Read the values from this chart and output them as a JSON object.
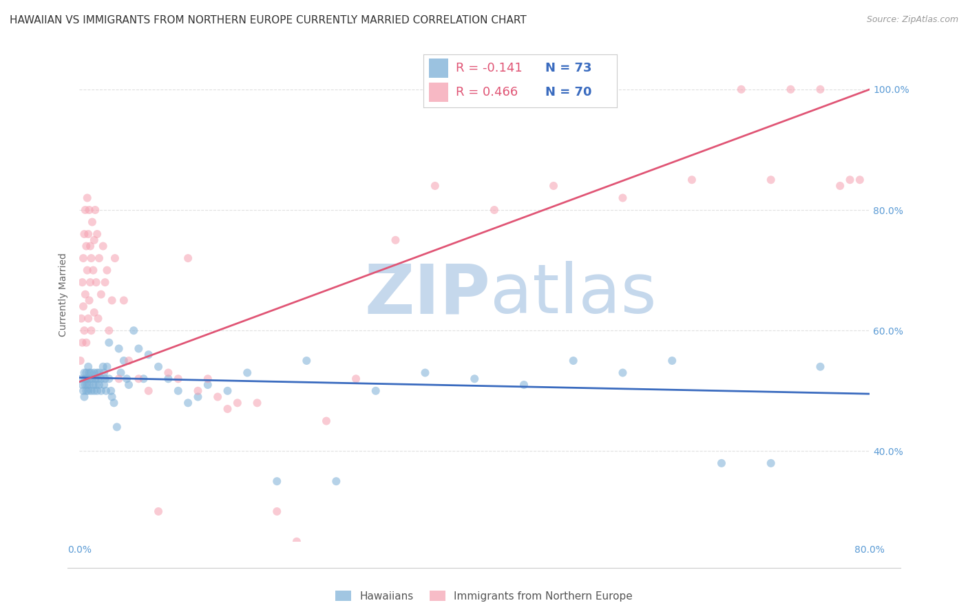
{
  "title": "HAWAIIAN VS IMMIGRANTS FROM NORTHERN EUROPE CURRENTLY MARRIED CORRELATION CHART",
  "source": "Source: ZipAtlas.com",
  "ylabel": "Currently Married",
  "xlim": [
    0.0,
    0.8
  ],
  "ylim": [
    0.25,
    1.07
  ],
  "xtick_positions": [
    0.0,
    0.2,
    0.4,
    0.6,
    0.8
  ],
  "xtick_labels": [
    "0.0%",
    "",
    "",
    "",
    "80.0%"
  ],
  "ytick_values": [
    0.4,
    0.6,
    0.8,
    1.0
  ],
  "ytick_labels": [
    "40.0%",
    "60.0%",
    "80.0%",
    "100.0%"
  ],
  "background_color": "#ffffff",
  "watermark_zip": "ZIP",
  "watermark_atlas": "atlas",
  "watermark_color": "#c5d8ec",
  "blue_color": "#7aaed6",
  "pink_color": "#f5a0b0",
  "blue_line_color": "#3a6bbf",
  "pink_line_color": "#e05575",
  "legend_r_blue": "R = -0.141",
  "legend_n_blue": "N = 73",
  "legend_r_pink": "R = 0.466",
  "legend_n_pink": "N = 70",
  "legend_label_blue": "Hawaiians",
  "legend_label_pink": "Immigrants from Northern Europe",
  "blue_scatter_x": [
    0.002,
    0.003,
    0.004,
    0.005,
    0.005,
    0.006,
    0.006,
    0.007,
    0.007,
    0.008,
    0.008,
    0.009,
    0.009,
    0.01,
    0.01,
    0.011,
    0.012,
    0.012,
    0.013,
    0.014,
    0.015,
    0.015,
    0.016,
    0.017,
    0.018,
    0.018,
    0.019,
    0.02,
    0.02,
    0.022,
    0.022,
    0.024,
    0.025,
    0.025,
    0.026,
    0.027,
    0.028,
    0.03,
    0.03,
    0.032,
    0.033,
    0.035,
    0.038,
    0.04,
    0.042,
    0.045,
    0.048,
    0.05,
    0.055,
    0.06,
    0.065,
    0.07,
    0.08,
    0.09,
    0.1,
    0.11,
    0.12,
    0.13,
    0.15,
    0.17,
    0.2,
    0.23,
    0.26,
    0.3,
    0.35,
    0.4,
    0.45,
    0.5,
    0.55,
    0.6,
    0.65,
    0.7,
    0.75
  ],
  "blue_scatter_y": [
    0.52,
    0.51,
    0.5,
    0.53,
    0.49,
    0.51,
    0.52,
    0.5,
    0.53,
    0.51,
    0.52,
    0.5,
    0.54,
    0.51,
    0.53,
    0.52,
    0.5,
    0.53,
    0.52,
    0.51,
    0.53,
    0.5,
    0.52,
    0.51,
    0.53,
    0.5,
    0.52,
    0.51,
    0.53,
    0.52,
    0.5,
    0.54,
    0.51,
    0.53,
    0.52,
    0.5,
    0.54,
    0.58,
    0.52,
    0.5,
    0.49,
    0.48,
    0.44,
    0.57,
    0.53,
    0.55,
    0.52,
    0.51,
    0.6,
    0.57,
    0.52,
    0.56,
    0.54,
    0.52,
    0.5,
    0.48,
    0.49,
    0.51,
    0.5,
    0.53,
    0.35,
    0.55,
    0.35,
    0.5,
    0.53,
    0.52,
    0.51,
    0.55,
    0.53,
    0.55,
    0.38,
    0.38,
    0.54
  ],
  "pink_scatter_x": [
    0.001,
    0.002,
    0.003,
    0.003,
    0.004,
    0.004,
    0.005,
    0.005,
    0.006,
    0.006,
    0.007,
    0.007,
    0.008,
    0.008,
    0.009,
    0.009,
    0.01,
    0.01,
    0.011,
    0.011,
    0.012,
    0.012,
    0.013,
    0.014,
    0.015,
    0.015,
    0.016,
    0.017,
    0.018,
    0.019,
    0.02,
    0.022,
    0.024,
    0.026,
    0.028,
    0.03,
    0.033,
    0.036,
    0.04,
    0.045,
    0.05,
    0.06,
    0.07,
    0.08,
    0.09,
    0.1,
    0.12,
    0.14,
    0.16,
    0.18,
    0.2,
    0.22,
    0.25,
    0.28,
    0.32,
    0.36,
    0.42,
    0.48,
    0.55,
    0.62,
    0.67,
    0.7,
    0.72,
    0.75,
    0.77,
    0.78,
    0.79,
    0.11,
    0.13,
    0.15
  ],
  "pink_scatter_y": [
    0.55,
    0.62,
    0.58,
    0.68,
    0.72,
    0.64,
    0.76,
    0.6,
    0.8,
    0.66,
    0.74,
    0.58,
    0.82,
    0.7,
    0.76,
    0.62,
    0.8,
    0.65,
    0.74,
    0.68,
    0.72,
    0.6,
    0.78,
    0.7,
    0.75,
    0.63,
    0.8,
    0.68,
    0.76,
    0.62,
    0.72,
    0.66,
    0.74,
    0.68,
    0.7,
    0.6,
    0.65,
    0.72,
    0.52,
    0.65,
    0.55,
    0.52,
    0.5,
    0.3,
    0.53,
    0.52,
    0.5,
    0.49,
    0.48,
    0.48,
    0.3,
    0.25,
    0.45,
    0.52,
    0.75,
    0.84,
    0.8,
    0.84,
    0.82,
    0.85,
    1.0,
    0.85,
    1.0,
    1.0,
    0.84,
    0.85,
    0.85,
    0.72,
    0.52,
    0.47
  ],
  "blue_line_x": [
    0.0,
    0.8
  ],
  "blue_line_y": [
    0.522,
    0.495
  ],
  "pink_line_x": [
    0.0,
    0.8
  ],
  "pink_line_y": [
    0.515,
    1.0
  ],
  "grid_color": "#e0e0e0",
  "marker_size": 75,
  "marker_alpha": 0.55,
  "title_fontsize": 11,
  "axis_label_fontsize": 10,
  "tick_fontsize": 10,
  "tick_color": "#5b9bd5",
  "ylabel_color": "#666666"
}
